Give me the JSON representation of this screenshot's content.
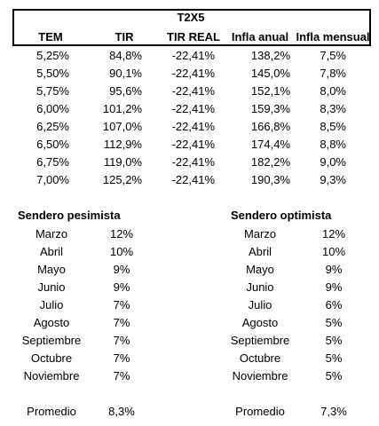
{
  "table": {
    "title": "T2X5",
    "columns": [
      "TEM",
      "TIR",
      "TIR REAL",
      "Infla anual",
      "Infla mensual"
    ],
    "rows": [
      [
        "5,25%",
        "84,8%",
        "-22,41%",
        "138,2%",
        "7,5%"
      ],
      [
        "5,50%",
        "90,1%",
        "-22,41%",
        "145,0%",
        "7,8%"
      ],
      [
        "5,75%",
        "95,6%",
        "-22,41%",
        "152,1%",
        "8,0%"
      ],
      [
        "6,00%",
        "101,2%",
        "-22,41%",
        "159,3%",
        "8,3%"
      ],
      [
        "6,25%",
        "107,0%",
        "-22,41%",
        "166,8%",
        "8,5%"
      ],
      [
        "6,50%",
        "112,9%",
        "-22,41%",
        "174,4%",
        "8,8%"
      ],
      [
        "6,75%",
        "119,0%",
        "-22,41%",
        "182,2%",
        "9,0%"
      ],
      [
        "7,00%",
        "125,2%",
        "-22,41%",
        "190,3%",
        "9,3%"
      ]
    ]
  },
  "pesimista": {
    "title": "Sendero pesimista",
    "rows": [
      [
        "Marzo",
        "12%"
      ],
      [
        "Abril",
        "10%"
      ],
      [
        "Mayo",
        "9%"
      ],
      [
        "Junio",
        "9%"
      ],
      [
        "Julio",
        "7%"
      ],
      [
        "Agosto",
        "7%"
      ],
      [
        "Septiembre",
        "7%"
      ],
      [
        "Octubre",
        "7%"
      ],
      [
        "Noviembre",
        "7%"
      ]
    ],
    "average": {
      "label": "Promedio",
      "value": "8,3%"
    }
  },
  "optimista": {
    "title": "Sendero optimista",
    "rows": [
      [
        "Marzo",
        "12%"
      ],
      [
        "Abril",
        "10%"
      ],
      [
        "Mayo",
        "9%"
      ],
      [
        "Junio",
        "9%"
      ],
      [
        "Julio",
        "6%"
      ],
      [
        "Agosto",
        "5%"
      ],
      [
        "Septiembre",
        "5%"
      ],
      [
        "Octubre",
        "5%"
      ],
      [
        "Noviembre",
        "5%"
      ]
    ],
    "average": {
      "label": "Promedio",
      "value": "7,3%"
    }
  }
}
